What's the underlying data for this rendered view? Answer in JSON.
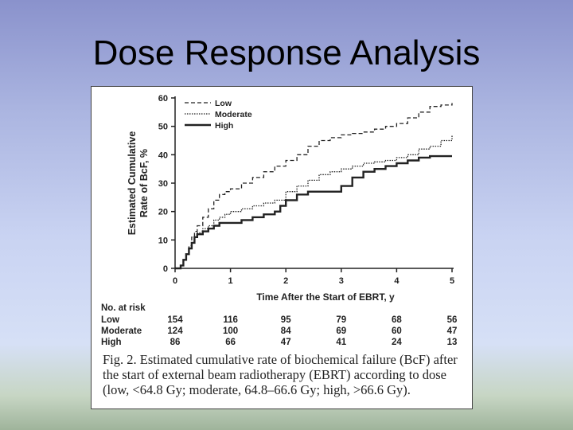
{
  "slide": {
    "title": "Dose Response Analysis"
  },
  "chart_data": {
    "type": "line",
    "title": "",
    "xlabel": "Time After the Start of EBRT, y",
    "ylabel_lines": [
      "Estimated Cumulative",
      "Rate of BcF, %"
    ],
    "xlim": [
      0,
      5
    ],
    "ylim": [
      0,
      60
    ],
    "x_ticks": [
      0,
      1,
      2,
      3,
      4,
      5
    ],
    "y_ticks": [
      0,
      10,
      20,
      30,
      40,
      50,
      60
    ],
    "grid": false,
    "legend_position": "top-left",
    "series": [
      {
        "name": "Low",
        "style": "dashed",
        "points": [
          [
            0,
            0
          ],
          [
            0.1,
            1
          ],
          [
            0.15,
            3
          ],
          [
            0.2,
            5
          ],
          [
            0.25,
            8
          ],
          [
            0.3,
            11
          ],
          [
            0.35,
            13
          ],
          [
            0.4,
            15
          ],
          [
            0.5,
            18
          ],
          [
            0.6,
            21
          ],
          [
            0.7,
            24
          ],
          [
            0.8,
            26
          ],
          [
            0.9,
            27
          ],
          [
            1.0,
            28
          ],
          [
            1.2,
            30
          ],
          [
            1.4,
            32
          ],
          [
            1.6,
            34
          ],
          [
            1.8,
            36
          ],
          [
            2.0,
            38
          ],
          [
            2.2,
            40
          ],
          [
            2.4,
            43
          ],
          [
            2.6,
            45
          ],
          [
            2.8,
            46
          ],
          [
            3.0,
            47
          ],
          [
            3.2,
            47.5
          ],
          [
            3.4,
            48
          ],
          [
            3.6,
            49
          ],
          [
            3.8,
            50
          ],
          [
            4.0,
            51
          ],
          [
            4.2,
            53
          ],
          [
            4.4,
            55
          ],
          [
            4.6,
            57
          ],
          [
            4.8,
            57.5
          ],
          [
            5.0,
            58.2
          ]
        ]
      },
      {
        "name": "Moderate",
        "style": "dotted",
        "points": [
          [
            0,
            0
          ],
          [
            0.1,
            1
          ],
          [
            0.15,
            3
          ],
          [
            0.2,
            5
          ],
          [
            0.25,
            7
          ],
          [
            0.3,
            9
          ],
          [
            0.35,
            11
          ],
          [
            0.4,
            12.5
          ],
          [
            0.5,
            14
          ],
          [
            0.6,
            15
          ],
          [
            0.7,
            17
          ],
          [
            0.8,
            18
          ],
          [
            0.9,
            19
          ],
          [
            1.0,
            20
          ],
          [
            1.2,
            21
          ],
          [
            1.4,
            22
          ],
          [
            1.6,
            23
          ],
          [
            1.8,
            24
          ],
          [
            2.0,
            27
          ],
          [
            2.2,
            29
          ],
          [
            2.4,
            31
          ],
          [
            2.6,
            33
          ],
          [
            2.8,
            34
          ],
          [
            3.0,
            35
          ],
          [
            3.2,
            36
          ],
          [
            3.4,
            37
          ],
          [
            3.6,
            37.5
          ],
          [
            3.8,
            38
          ],
          [
            4.0,
            39
          ],
          [
            4.2,
            40
          ],
          [
            4.4,
            42
          ],
          [
            4.6,
            43
          ],
          [
            4.8,
            45
          ],
          [
            5.0,
            47
          ]
        ]
      },
      {
        "name": "High",
        "style": "solid",
        "points": [
          [
            0,
            0
          ],
          [
            0.1,
            1
          ],
          [
            0.15,
            3
          ],
          [
            0.2,
            5
          ],
          [
            0.25,
            7
          ],
          [
            0.3,
            9
          ],
          [
            0.35,
            11
          ],
          [
            0.4,
            12
          ],
          [
            0.5,
            13
          ],
          [
            0.6,
            14
          ],
          [
            0.7,
            15
          ],
          [
            0.8,
            16
          ],
          [
            1.0,
            16
          ],
          [
            1.2,
            17
          ],
          [
            1.4,
            18
          ],
          [
            1.6,
            19
          ],
          [
            1.8,
            20
          ],
          [
            1.9,
            22
          ],
          [
            2.0,
            24
          ],
          [
            2.2,
            26
          ],
          [
            2.4,
            27
          ],
          [
            2.6,
            27
          ],
          [
            2.8,
            27
          ],
          [
            3.0,
            29
          ],
          [
            3.2,
            32
          ],
          [
            3.4,
            34
          ],
          [
            3.6,
            35
          ],
          [
            3.8,
            36
          ],
          [
            4.0,
            37
          ],
          [
            4.2,
            38
          ],
          [
            4.4,
            39
          ],
          [
            4.6,
            39.5
          ],
          [
            5.0,
            39.5
          ]
        ]
      }
    ],
    "risk_table": {
      "header": "No. at risk",
      "rows": [
        {
          "label": "Low",
          "values": [
            "154",
            "116",
            "95",
            "79",
            "68",
            "56"
          ]
        },
        {
          "label": "Moderate",
          "values": [
            "124",
            "100",
            "84",
            "69",
            "60",
            "47"
          ]
        },
        {
          "label": "High",
          "values": [
            "86",
            "66",
            "47",
            "41",
            "24",
            "13"
          ]
        }
      ]
    }
  },
  "caption": {
    "text": "Fig. 2.  Estimated cumulative rate of biochemical failure (BcF) after the start of external beam radiotherapy (EBRT) according to dose (low, <64.8 Gy; moderate, 64.8–66.6 Gy; high, >66.6 Gy)."
  }
}
